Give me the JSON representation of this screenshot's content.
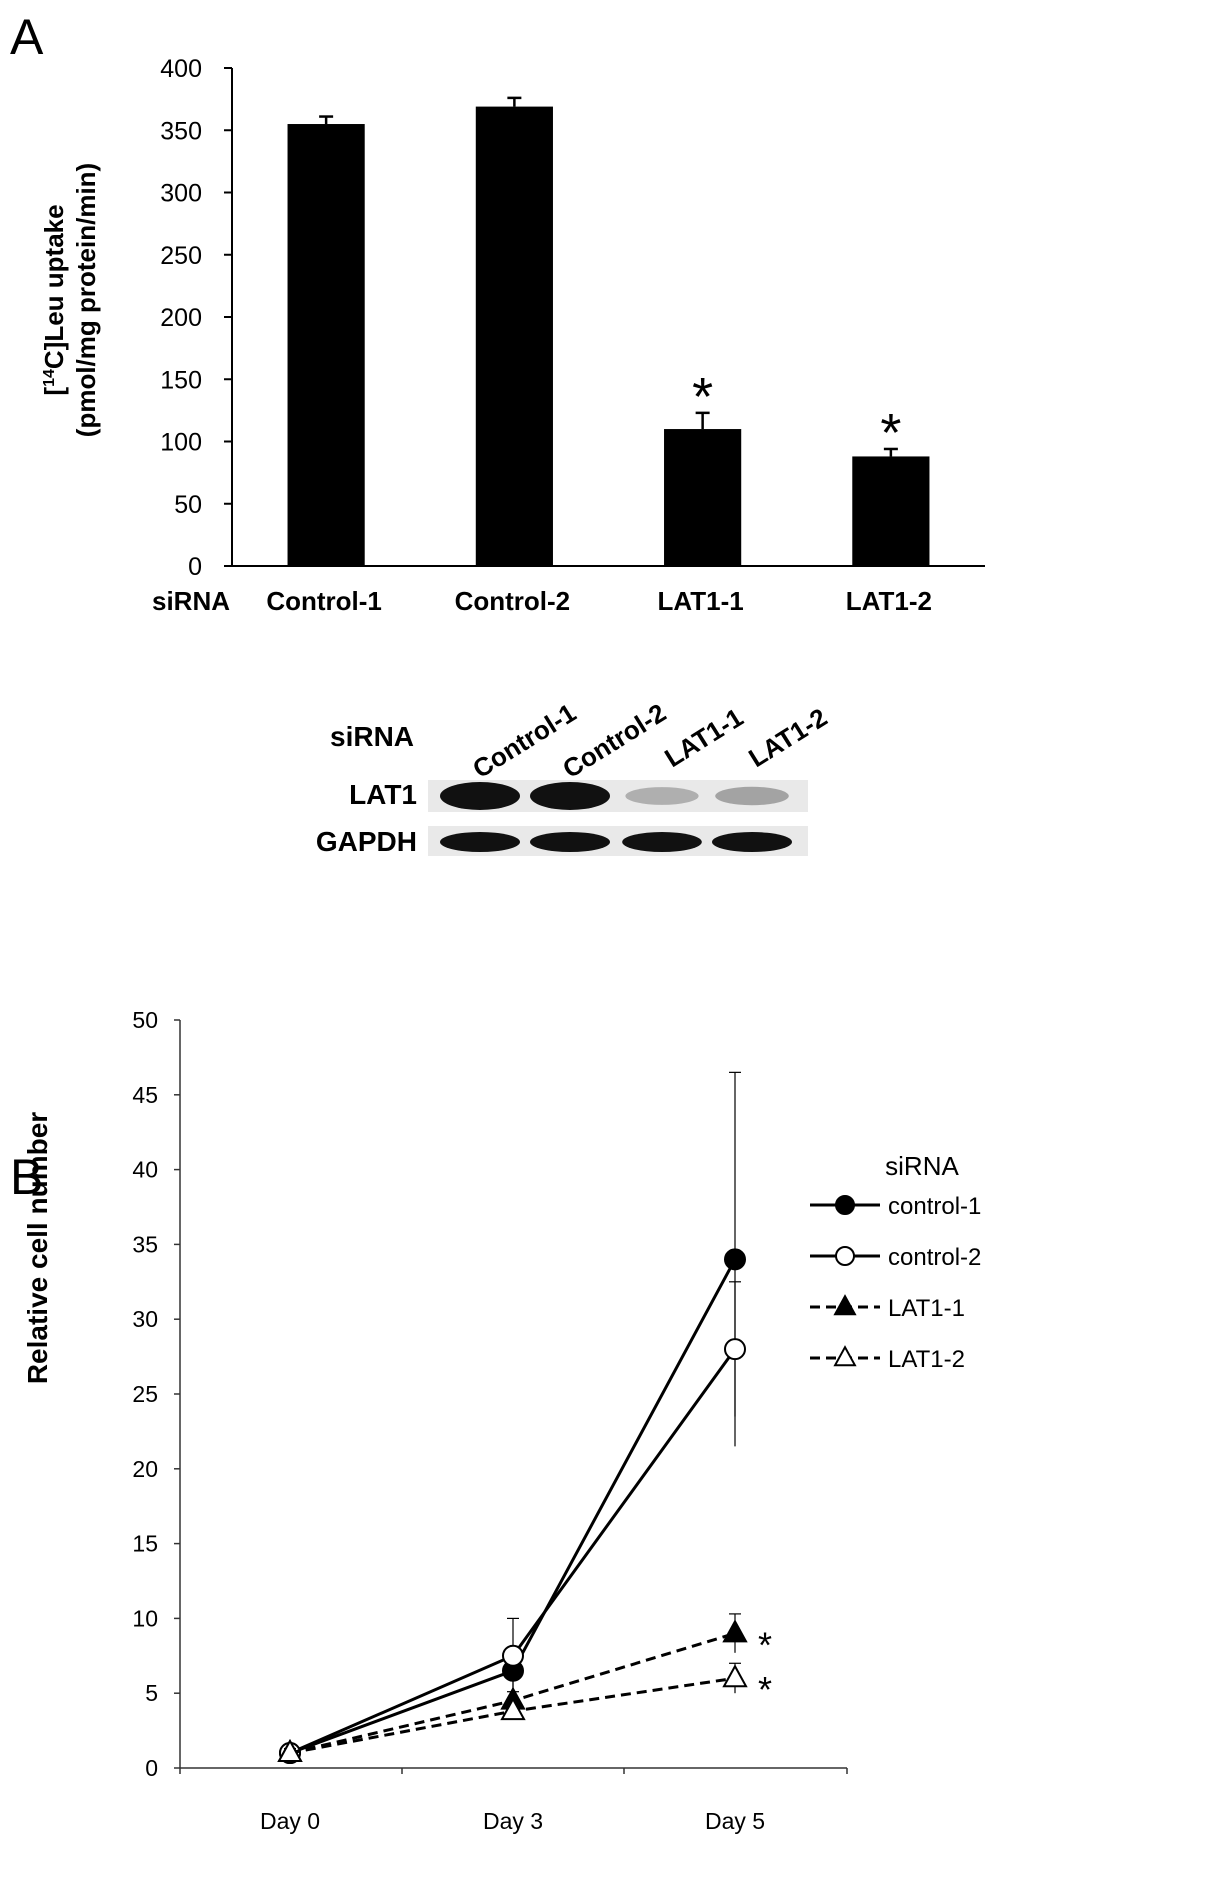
{
  "panel_a_label": "A",
  "panel_b_label": "B",
  "chart_data": [
    {
      "type": "bar",
      "panel": "A",
      "ylabel_line1_prefix": "[",
      "ylabel_line1_sup": "14",
      "ylabel_line1_suffix": "C]Leu uptake",
      "ylabel_line2": "(pmol/mg protein/min)",
      "xlabel": "siRNA",
      "categories": [
        "Control-1",
        "Control-2",
        "LAT1-1",
        "LAT1-2"
      ],
      "values": [
        355,
        369,
        110,
        88
      ],
      "errors": [
        6,
        7,
        13,
        6
      ],
      "significance": [
        "",
        "",
        "*",
        "*"
      ],
      "ylim": [
        0,
        400
      ],
      "yticks": [
        0,
        50,
        100,
        150,
        200,
        250,
        300,
        350,
        400
      ],
      "bar_color": "#000000"
    },
    {
      "type": "line",
      "panel": "B",
      "ylabel": "Relative cell number",
      "x": [
        "Day 0",
        "Day 3",
        "Day 5"
      ],
      "ylim": [
        0,
        50
      ],
      "yticks": [
        0,
        5,
        10,
        15,
        20,
        25,
        30,
        35,
        40,
        45,
        50
      ],
      "legend_title": "siRNA",
      "legend_position": "right",
      "series": [
        {
          "name": "control-1",
          "values": [
            1,
            6.5,
            34
          ],
          "errors": [
            0.5,
            1.5,
            12.5
          ],
          "marker": "circle-filled",
          "dash": "solid",
          "significance": ""
        },
        {
          "name": "control-2",
          "values": [
            1,
            7.5,
            28
          ],
          "errors": [
            0.5,
            2.5,
            4.5
          ],
          "marker": "circle-open",
          "dash": "solid",
          "significance": ""
        },
        {
          "name": "LAT1-1",
          "values": [
            1,
            4.5,
            9
          ],
          "errors": [
            0.3,
            0.6,
            1.3
          ],
          "marker": "triangle-filled",
          "dash": "dashed",
          "significance": "*"
        },
        {
          "name": "LAT1-2",
          "values": [
            1,
            3.8,
            6
          ],
          "errors": [
            0.3,
            0.5,
            1.0
          ],
          "marker": "triangle-open",
          "dash": "dashed",
          "significance": "*"
        }
      ]
    }
  ],
  "western_blot": {
    "siRNA_label": "siRNA",
    "lanes": [
      "Control-1",
      "Control-2",
      "LAT1-1",
      "LAT1-2"
    ],
    "rows": [
      {
        "label": "LAT1",
        "band_intensity": [
          1.0,
          1.0,
          0.15,
          0.2
        ]
      },
      {
        "label": "GAPDH",
        "band_intensity": [
          1.0,
          1.0,
          0.95,
          1.0
        ]
      }
    ]
  }
}
